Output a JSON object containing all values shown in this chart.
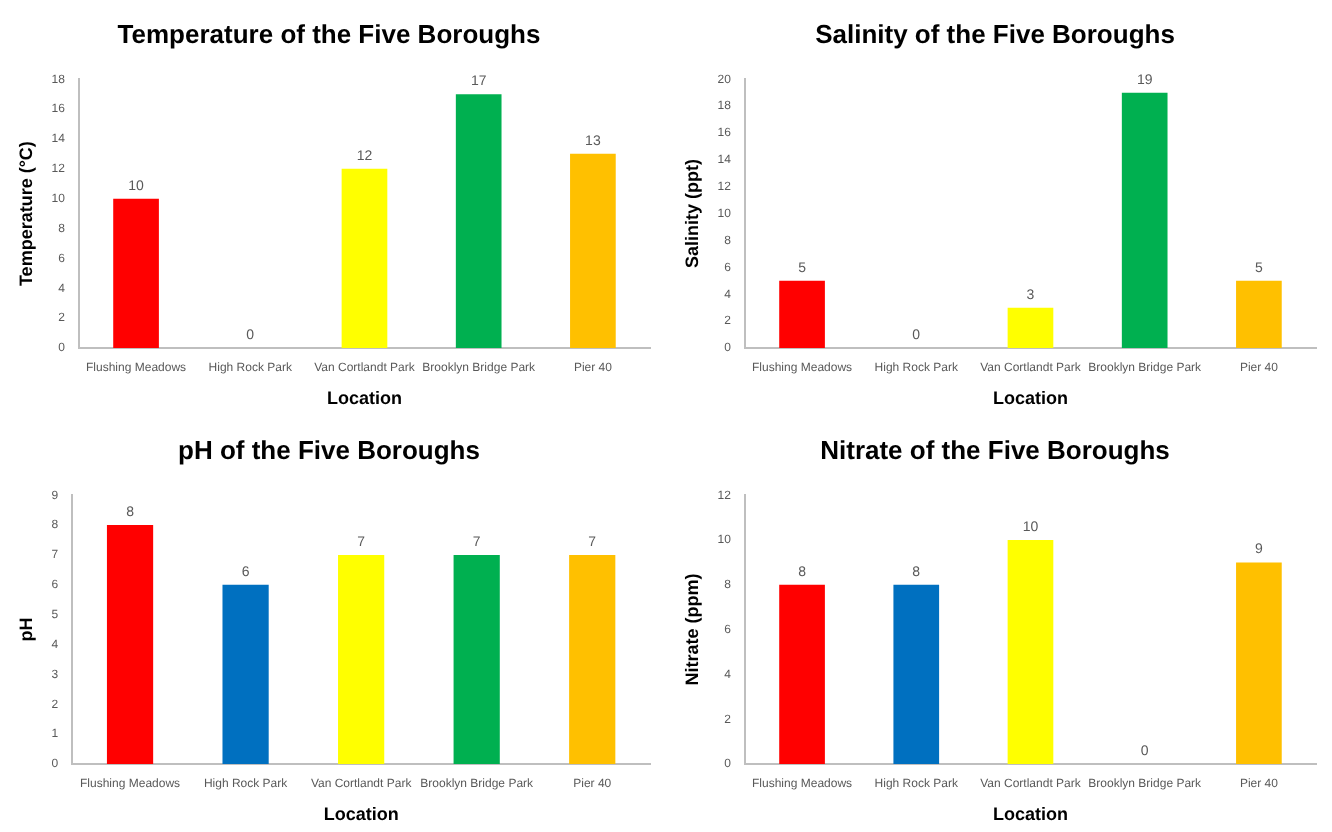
{
  "chart_data": [
    {
      "type": "bar",
      "title": "Temperature of the Five Boroughs",
      "xlabel": "Location",
      "ylabel": "Temperature (°C)",
      "categories": [
        "Flushing Meadows",
        "High Rock Park",
        "Van Cortlandt Park",
        "Brooklyn Bridge Park",
        "Pier 40"
      ],
      "values": [
        10,
        0,
        12,
        17,
        13
      ],
      "colors": [
        "#ff0000",
        "#0070c0",
        "#ffff00",
        "#00b050",
        "#ffc000"
      ],
      "ylim": [
        0,
        18
      ],
      "yticks": [
        0,
        2,
        4,
        6,
        8,
        10,
        12,
        14,
        16,
        18
      ],
      "grid": false,
      "legend": false,
      "data_labels": true
    },
    {
      "type": "bar",
      "title": "Salinity of the Five Boroughs",
      "xlabel": "Location",
      "ylabel": "Salinity (ppt)",
      "categories": [
        "Flushing Meadows",
        "High Rock Park",
        "Van Cortlandt Park",
        "Brooklyn Bridge Park",
        "Pier 40"
      ],
      "values": [
        5,
        0,
        3,
        19,
        5
      ],
      "colors": [
        "#ff0000",
        "#0070c0",
        "#ffff00",
        "#00b050",
        "#ffc000"
      ],
      "ylim": [
        0,
        20
      ],
      "yticks": [
        0,
        2,
        4,
        6,
        8,
        10,
        12,
        14,
        16,
        18,
        20
      ],
      "grid": false,
      "legend": false,
      "data_labels": true
    },
    {
      "type": "bar",
      "title": "pH of the Five Boroughs",
      "xlabel": "Location",
      "ylabel": "pH",
      "categories": [
        "Flushing Meadows",
        "High Rock Park",
        "Van Cortlandt Park",
        "Brooklyn Bridge Park",
        "Pier 40"
      ],
      "values": [
        8,
        6,
        7,
        7,
        7
      ],
      "colors": [
        "#ff0000",
        "#0070c0",
        "#ffff00",
        "#00b050",
        "#ffc000"
      ],
      "ylim": [
        0,
        9
      ],
      "yticks": [
        0,
        1,
        2,
        3,
        4,
        5,
        6,
        7,
        8,
        9
      ],
      "grid": false,
      "legend": false,
      "data_labels": true
    },
    {
      "type": "bar",
      "title": "Nitrate of the Five Boroughs",
      "xlabel": "Location",
      "ylabel": "Nitrate (ppm)",
      "categories": [
        "Flushing Meadows",
        "High Rock Park",
        "Van Cortlandt Park",
        "Brooklyn Bridge Park",
        "Pier 40"
      ],
      "values": [
        8,
        8,
        10,
        0,
        9
      ],
      "colors": [
        "#ff0000",
        "#0070c0",
        "#ffff00",
        "#00b050",
        "#ffc000"
      ],
      "ylim": [
        0,
        12
      ],
      "yticks": [
        0,
        2,
        4,
        6,
        8,
        10,
        12
      ],
      "grid": false,
      "legend": false,
      "data_labels": true
    }
  ]
}
